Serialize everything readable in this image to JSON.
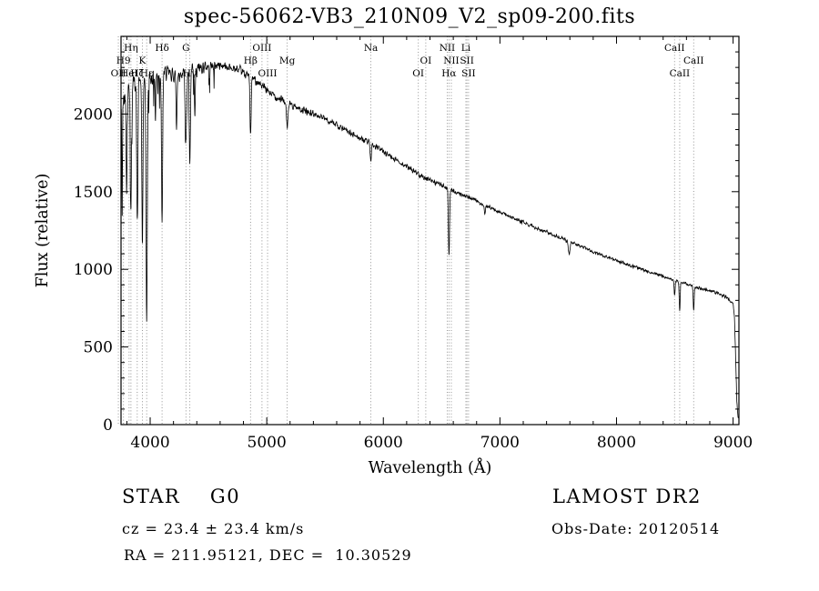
{
  "title": "spec-56062-VB3_210N09_V2_sp09-200.fits",
  "annotations": {
    "class_label": "STAR    G0",
    "survey": "LAMOST DR2",
    "cz": "cz = 23.4 ± 23.4 km/s",
    "obs_date": "Obs-Date: 20120514",
    "coords": "RA = 211.95121, DEC =  10.30529"
  },
  "chart_data": {
    "type": "line",
    "title": "spec-56062-VB3_210N09_V2_sp09-200.fits",
    "xlabel": "Wavelength (Å)",
    "ylabel": "Flux (relative)",
    "xlim": [
      3750,
      9050
    ],
    "ylim": [
      0,
      2500
    ],
    "x_ticks": [
      4000,
      5000,
      6000,
      7000,
      8000,
      9000
    ],
    "y_ticks": [
      0,
      500,
      1000,
      1500,
      2000
    ],
    "grid": false,
    "line_color": "#000000",
    "guide_line_color": "#8a8a8a",
    "continuum": [
      [
        3750,
        2020
      ],
      [
        3790,
        2130
      ],
      [
        3830,
        2190
      ],
      [
        3870,
        2210
      ],
      [
        3910,
        2220
      ],
      [
        3950,
        2230
      ],
      [
        4000,
        2230
      ],
      [
        4060,
        2250
      ],
      [
        4120,
        2270
      ],
      [
        4200,
        2250
      ],
      [
        4280,
        2260
      ],
      [
        4360,
        2280
      ],
      [
        4440,
        2300
      ],
      [
        4520,
        2310
      ],
      [
        4600,
        2315
      ],
      [
        4680,
        2300
      ],
      [
        4760,
        2280
      ],
      [
        4840,
        2250
      ],
      [
        4920,
        2210
      ],
      [
        5000,
        2150
      ],
      [
        5080,
        2110
      ],
      [
        5160,
        2080
      ],
      [
        5240,
        2050
      ],
      [
        5320,
        2020
      ],
      [
        5400,
        2000
      ],
      [
        5480,
        1975
      ],
      [
        5560,
        1945
      ],
      [
        5640,
        1910
      ],
      [
        5720,
        1875
      ],
      [
        5800,
        1845
      ],
      [
        5880,
        1815
      ],
      [
        5960,
        1780
      ],
      [
        6040,
        1740
      ],
      [
        6120,
        1700
      ],
      [
        6200,
        1660
      ],
      [
        6280,
        1625
      ],
      [
        6360,
        1590
      ],
      [
        6440,
        1560
      ],
      [
        6520,
        1535
      ],
      [
        6600,
        1505
      ],
      [
        6680,
        1480
      ],
      [
        6760,
        1455
      ],
      [
        6840,
        1425
      ],
      [
        6920,
        1395
      ],
      [
        7000,
        1370
      ],
      [
        7080,
        1340
      ],
      [
        7160,
        1315
      ],
      [
        7240,
        1290
      ],
      [
        7320,
        1265
      ],
      [
        7400,
        1240
      ],
      [
        7480,
        1215
      ],
      [
        7560,
        1190
      ],
      [
        7640,
        1165
      ],
      [
        7720,
        1140
      ],
      [
        7800,
        1115
      ],
      [
        7880,
        1090
      ],
      [
        7960,
        1065
      ],
      [
        8040,
        1045
      ],
      [
        8120,
        1025
      ],
      [
        8200,
        1005
      ],
      [
        8280,
        985
      ],
      [
        8360,
        965
      ],
      [
        8440,
        945
      ],
      [
        8520,
        925
      ],
      [
        8600,
        905
      ],
      [
        8680,
        885
      ],
      [
        8760,
        870
      ],
      [
        8840,
        855
      ],
      [
        8920,
        830
      ],
      [
        8975,
        800
      ],
      [
        9000,
        775
      ],
      [
        9012,
        690
      ],
      [
        9022,
        420
      ],
      [
        9032,
        150
      ],
      [
        9042,
        45
      ],
      [
        9050,
        35
      ]
    ],
    "absorption_lines": [
      {
        "wavelength": 3727,
        "depth": 350,
        "sigma": 4
      },
      {
        "wavelength": 3760,
        "depth": 450,
        "sigma": 3
      },
      {
        "wavelength": 3798,
        "depth": 600,
        "sigma": 4
      },
      {
        "wavelength": 3835,
        "depth": 800,
        "sigma": 4.5
      },
      {
        "wavelength": 3889,
        "depth": 900,
        "sigma": 5
      },
      {
        "wavelength": 3933,
        "depth": 1050,
        "sigma": 5
      },
      {
        "wavelength": 3970,
        "depth": 1550,
        "sigma": 5.5
      },
      {
        "wavelength": 4045,
        "depth": 300,
        "sigma": 3
      },
      {
        "wavelength": 4102,
        "depth": 950,
        "sigma": 5
      },
      {
        "wavelength": 4226,
        "depth": 350,
        "sigma": 4
      },
      {
        "wavelength": 4307,
        "depth": 450,
        "sigma": 6
      },
      {
        "wavelength": 4340,
        "depth": 620,
        "sigma": 5
      },
      {
        "wavelength": 4383,
        "depth": 300,
        "sigma": 4
      },
      {
        "wavelength": 4861,
        "depth": 380,
        "sigma": 5
      },
      {
        "wavelength": 5175,
        "depth": 160,
        "sigma": 7
      },
      {
        "wavelength": 5893,
        "depth": 130,
        "sigma": 5
      },
      {
        "wavelength": 6563,
        "depth": 420,
        "sigma": 5
      },
      {
        "wavelength": 6870,
        "depth": 60,
        "sigma": 5
      },
      {
        "wavelength": 7594,
        "depth": 80,
        "sigma": 7
      },
      {
        "wavelength": 8498,
        "depth": 110,
        "sigma": 4
      },
      {
        "wavelength": 8542,
        "depth": 190,
        "sigma": 4
      },
      {
        "wavelength": 8662,
        "depth": 160,
        "sigma": 4
      }
    ],
    "noise_profile": [
      [
        3750,
        75
      ],
      [
        4000,
        60
      ],
      [
        4400,
        45
      ],
      [
        4800,
        35
      ],
      [
        5200,
        28
      ],
      [
        5800,
        22
      ],
      [
        6400,
        18
      ],
      [
        7000,
        15
      ],
      [
        8000,
        13
      ],
      [
        9050,
        12
      ]
    ],
    "spectral_lines": [
      {
        "label": "Hη",
        "wavelength": 3835,
        "row": 0
      },
      {
        "label": "Hδ",
        "wavelength": 4102,
        "row": 0
      },
      {
        "label": "G",
        "wavelength": 4307,
        "row": 0
      },
      {
        "label": "OIII",
        "wavelength": 4959,
        "row": 0
      },
      {
        "label": "Na",
        "wavelength": 5893,
        "row": 0
      },
      {
        "label": "NII",
        "wavelength": 6548,
        "row": 0
      },
      {
        "label": "Li",
        "wavelength": 6708,
        "row": 0
      },
      {
        "label": "CaII",
        "wavelength": 8498,
        "row": 0
      },
      {
        "label": "H9",
        "wavelength": 3771,
        "row": 1
      },
      {
        "label": "K",
        "wavelength": 3933,
        "row": 1
      },
      {
        "label": "Hβ",
        "wavelength": 4861,
        "row": 1
      },
      {
        "label": "Mg",
        "wavelength": 5175,
        "row": 1
      },
      {
        "label": "OI",
        "wavelength": 6364,
        "row": 1
      },
      {
        "label": "NII",
        "wavelength": 6583,
        "row": 1
      },
      {
        "label": "SII",
        "wavelength": 6717,
        "row": 1
      },
      {
        "label": "CaII",
        "wavelength": 8662,
        "row": 1
      },
      {
        "label": "OII",
        "wavelength": 3727,
        "row": 2
      },
      {
        "label": "HeI",
        "wavelength": 3819,
        "row": 2
      },
      {
        "label": "Hζ",
        "wavelength": 3889,
        "row": 2
      },
      {
        "label": "Hε",
        "wavelength": 3970,
        "row": 2
      },
      {
        "label": "Hγ",
        "wavelength": 4340,
        "row": 2
      },
      {
        "label": "OIII",
        "wavelength": 5007,
        "row": 2
      },
      {
        "label": "OI",
        "wavelength": 6300,
        "row": 2
      },
      {
        "label": "Hα",
        "wavelength": 6563,
        "row": 2
      },
      {
        "label": "SII",
        "wavelength": 6731,
        "row": 2
      },
      {
        "label": "CaII",
        "wavelength": 8542,
        "row": 2
      }
    ]
  }
}
